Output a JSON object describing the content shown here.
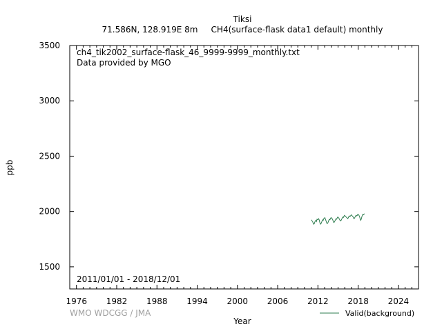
{
  "chart_data": {
    "type": "line",
    "title": "Tiksi",
    "subtitle": "71.586N, 128.919E 8m     CH4(surface-flask data1 default) monthly",
    "file_label": "ch4_tik2002_surface-flask_46_9999-9999_monthly.txt",
    "provider_label": "Data provided by MGO",
    "date_range_label": "2011/01/01 - 2018/12/01",
    "watermark": "WMO WDCGG / JMA",
    "xlabel": "Year",
    "ylabel": "ppb",
    "xlim": [
      1975,
      2027
    ],
    "ylim": [
      1300,
      3500
    ],
    "x_ticks": [
      "1976",
      "1982",
      "1988",
      "1994",
      "2000",
      "2006",
      "2012",
      "2018",
      "2024"
    ],
    "y_ticks": [
      "1500",
      "2000",
      "2500",
      "3000",
      "3500"
    ],
    "legend_position": "bottom-right",
    "series": [
      {
        "name": "Valid(background)",
        "color": "#2e7d4f",
        "x": [
          2011.04,
          2011.12,
          2011.21,
          2011.29,
          2011.37,
          2011.46,
          2011.54,
          2011.62,
          2011.71,
          2011.79,
          2011.87,
          2011.96,
          2012.04,
          2012.12,
          2012.21,
          2012.29,
          2012.37,
          2012.46,
          2012.54,
          2012.62,
          2012.71,
          2012.79,
          2012.87,
          2012.96,
          2013.04,
          2013.12,
          2013.21,
          2013.29,
          2013.37,
          2013.46,
          2013.54,
          2013.62,
          2013.71,
          2013.79,
          2013.87,
          2013.96,
          2014.04,
          2014.12,
          2014.21,
          2014.29,
          2014.37,
          2014.46,
          2014.54,
          2014.62,
          2014.71,
          2014.79,
          2014.87,
          2014.96,
          2015.04,
          2015.12,
          2015.21,
          2015.29,
          2015.37,
          2015.46,
          2015.54,
          2015.62,
          2015.71,
          2015.79,
          2015.87,
          2015.96,
          2016.04,
          2016.12,
          2016.21,
          2016.29,
          2016.37,
          2016.46,
          2016.54,
          2016.62,
          2016.71,
          2016.79,
          2016.87,
          2016.96,
          2017.04,
          2017.12,
          2017.21,
          2017.29,
          2017.37,
          2017.46,
          2017.54,
          2017.62,
          2017.71,
          2017.79,
          2017.87,
          2017.96,
          2018.04,
          2018.12,
          2018.21,
          2018.29,
          2018.37,
          2018.46,
          2018.54,
          2018.62,
          2018.71,
          2018.79,
          2018.87,
          2018.96
        ],
        "y": [
          1925,
          1915,
          1910,
          1895,
          1885,
          1890,
          1905,
          1915,
          1920,
          1910,
          1930,
          1925,
          1930,
          1935,
          1920,
          1900,
          1885,
          1890,
          1900,
          1915,
          1925,
          1920,
          1935,
          1940,
          1945,
          1930,
          1915,
          1900,
          1890,
          1895,
          1905,
          1920,
          1930,
          1925,
          1935,
          1945,
          1940,
          1935,
          1925,
          1910,
          1900,
          1905,
          1915,
          1925,
          1935,
          1930,
          1940,
          1950,
          1945,
          1940,
          1930,
          1920,
          1915,
          1920,
          1930,
          1940,
          1950,
          1945,
          1955,
          1965,
          1960,
          1955,
          1950,
          1945,
          1940,
          1935,
          1945,
          1955,
          1960,
          1955,
          1960,
          1970,
          1965,
          1960,
          1955,
          1945,
          1935,
          1940,
          1950,
          1960,
          1965,
          1960,
          1965,
          1975,
          1970,
          1965,
          1955,
          1935,
          1920,
          1930,
          1950,
          1965,
          1975,
          1970,
          1975,
          1980
        ]
      }
    ]
  }
}
